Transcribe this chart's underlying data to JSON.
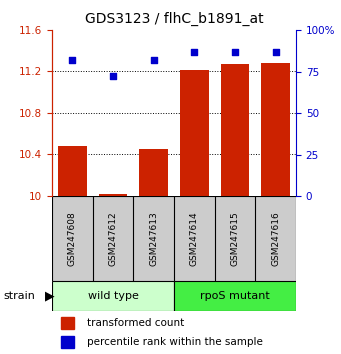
{
  "title": "GDS3123 / flhC_b1891_at",
  "samples": [
    "GSM247608",
    "GSM247612",
    "GSM247613",
    "GSM247614",
    "GSM247615",
    "GSM247616"
  ],
  "red_values": [
    10.48,
    10.02,
    10.45,
    11.21,
    11.27,
    11.28
  ],
  "blue_values_pct": [
    82,
    72,
    82,
    87,
    87,
    87
  ],
  "ylim_left": [
    10.0,
    11.6
  ],
  "ylim_right": [
    0,
    100
  ],
  "yticks_left": [
    10.0,
    10.4,
    10.8,
    11.2,
    11.6
  ],
  "yticks_right": [
    0,
    25,
    50,
    75,
    100
  ],
  "ytick_labels_left": [
    "10",
    "10.4",
    "10.8",
    "11.2",
    "11.6"
  ],
  "ytick_labels_right": [
    "0",
    "25",
    "50",
    "75",
    "100%"
  ],
  "groups": [
    {
      "label": "wild type",
      "indices": [
        0,
        1,
        2
      ],
      "color": "#ccffcc"
    },
    {
      "label": "rpoS mutant",
      "indices": [
        3,
        4,
        5
      ],
      "color": "#44ee44"
    }
  ],
  "strain_label": "strain",
  "bar_color": "#cc2200",
  "dot_color": "#0000cc",
  "tick_area_color": "#cccccc",
  "legend_red_label": "transformed count",
  "legend_blue_label": "percentile rank within the sample"
}
